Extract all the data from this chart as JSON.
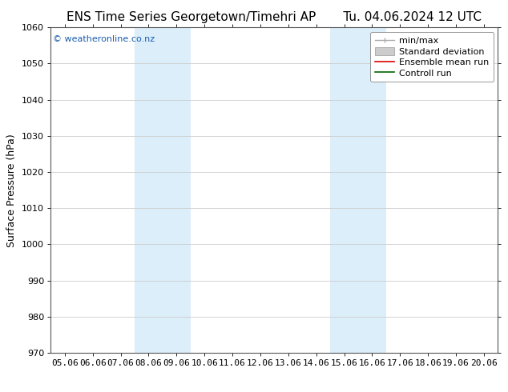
{
  "title_left": "ENS Time Series Georgetown/Timehri AP",
  "title_right": "Tu. 04.06.2024 12 UTC",
  "ylabel": "Surface Pressure (hPa)",
  "xlim_dates": [
    "05.06",
    "06.06",
    "07.06",
    "08.06",
    "09.06",
    "10.06",
    "11.06",
    "12.06",
    "13.06",
    "14.06",
    "15.06",
    "16.06",
    "17.06",
    "18.06",
    "19.06",
    "20.06"
  ],
  "ylim": [
    970,
    1060
  ],
  "yticks": [
    970,
    980,
    990,
    1000,
    1010,
    1020,
    1030,
    1040,
    1050,
    1060
  ],
  "shaded_regions": [
    {
      "xstart_idx": 3,
      "xend_idx": 5,
      "color": "#dceefa"
    },
    {
      "xstart_idx": 10,
      "xend_idx": 12,
      "color": "#dceefa"
    }
  ],
  "background_color": "#ffffff",
  "plot_bg_color": "#ffffff",
  "grid_color": "#cccccc",
  "legend_items": [
    {
      "label": "min/max",
      "type": "errorbar",
      "color": "#aaaaaa",
      "lw": 1.0
    },
    {
      "label": "Standard deviation",
      "type": "patch",
      "color": "#cccccc",
      "lw": 1.0
    },
    {
      "label": "Ensemble mean run",
      "type": "line",
      "color": "#dd0000",
      "lw": 1.2
    },
    {
      "label": "Controll run",
      "type": "line",
      "color": "#006600",
      "lw": 1.2
    }
  ],
  "watermark": "© weatheronline.co.nz",
  "watermark_color": "#1a5cb0",
  "title_fontsize": 11,
  "ylabel_fontsize": 9,
  "tick_fontsize": 8,
  "legend_fontsize": 8
}
